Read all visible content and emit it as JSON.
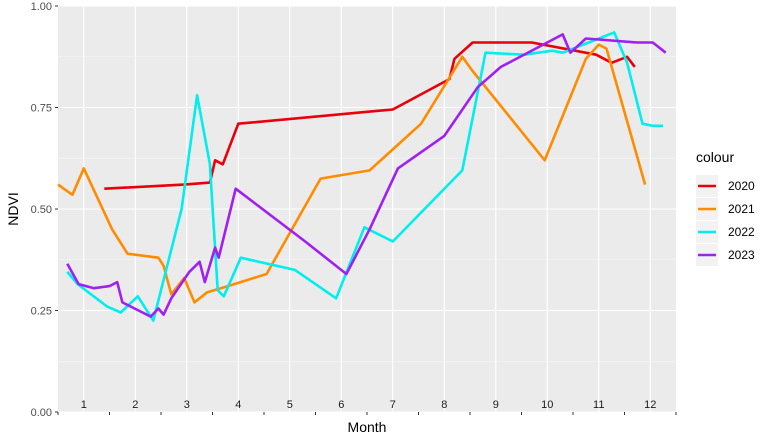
{
  "chart_data": {
    "type": "line",
    "xlabel": "Month",
    "ylabel": "NDVI",
    "xlim": [
      0.5,
      12.5
    ],
    "ylim": [
      0,
      1
    ],
    "y_ticks": [
      "0.00",
      "0.25",
      "0.50",
      "0.75",
      "1.00"
    ],
    "month_labels": [
      "1",
      "2",
      "3",
      "4",
      "5",
      "6",
      "7",
      "8",
      "9",
      "10",
      "11",
      "12"
    ],
    "grid": true,
    "legend": {
      "title": "colour",
      "position": "right"
    },
    "series": [
      {
        "name": "2020",
        "color": "#E8000B",
        "x": [
          1.4,
          2.95,
          3.45,
          3.55,
          3.7,
          4.0,
          7.0,
          8.1,
          8.2,
          8.55,
          9.7,
          10.95,
          11.25,
          11.55,
          11.7
        ],
        "y": [
          0.55,
          0.56,
          0.565,
          0.62,
          0.61,
          0.71,
          0.745,
          0.82,
          0.87,
          0.91,
          0.91,
          0.88,
          0.86,
          0.875,
          0.85
        ]
      },
      {
        "name": "2021",
        "color": "#FF8C00",
        "x": [
          0.5,
          0.78,
          1.0,
          1.55,
          1.85,
          2.45,
          2.55,
          2.7,
          2.95,
          3.15,
          3.4,
          3.8,
          4.55,
          5.6,
          6.55,
          7.55,
          8.35,
          8.55,
          9.95,
          10.75,
          11.0,
          11.15,
          11.9
        ],
        "y": [
          0.56,
          0.535,
          0.6,
          0.45,
          0.39,
          0.38,
          0.36,
          0.29,
          0.33,
          0.27,
          0.295,
          0.31,
          0.34,
          0.575,
          0.595,
          0.71,
          0.875,
          0.84,
          0.62,
          0.87,
          0.905,
          0.895,
          0.56
        ]
      },
      {
        "name": "2022",
        "color": "#00EEEE",
        "x": [
          0.68,
          0.88,
          1.45,
          1.72,
          2.05,
          2.35,
          2.9,
          3.2,
          3.45,
          3.6,
          3.72,
          4.05,
          5.1,
          5.9,
          6.45,
          7.0,
          8.35,
          8.8,
          9.55,
          10.1,
          10.3,
          11.0,
          11.3,
          11.55,
          11.85,
          12.05,
          12.25
        ],
        "y": [
          0.345,
          0.315,
          0.26,
          0.245,
          0.285,
          0.225,
          0.5,
          0.78,
          0.61,
          0.3,
          0.285,
          0.38,
          0.35,
          0.28,
          0.455,
          0.42,
          0.595,
          0.885,
          0.88,
          0.89,
          0.885,
          0.92,
          0.935,
          0.86,
          0.71,
          0.705,
          0.705
        ]
      },
      {
        "name": "2023",
        "color": "#A020F0",
        "x": [
          0.68,
          0.9,
          1.2,
          1.5,
          1.65,
          1.75,
          2.3,
          2.45,
          2.55,
          2.7,
          3.05,
          3.25,
          3.35,
          3.55,
          3.62,
          3.95,
          5.3,
          6.1,
          6.55,
          7.1,
          8.0,
          8.65,
          9.1,
          10.3,
          10.45,
          10.75,
          11.75,
          12.05,
          12.3
        ],
        "y": [
          0.365,
          0.315,
          0.305,
          0.31,
          0.32,
          0.27,
          0.235,
          0.255,
          0.24,
          0.28,
          0.345,
          0.37,
          0.32,
          0.405,
          0.38,
          0.55,
          0.42,
          0.34,
          0.45,
          0.6,
          0.68,
          0.8,
          0.85,
          0.93,
          0.885,
          0.92,
          0.91,
          0.91,
          0.885
        ]
      }
    ]
  }
}
